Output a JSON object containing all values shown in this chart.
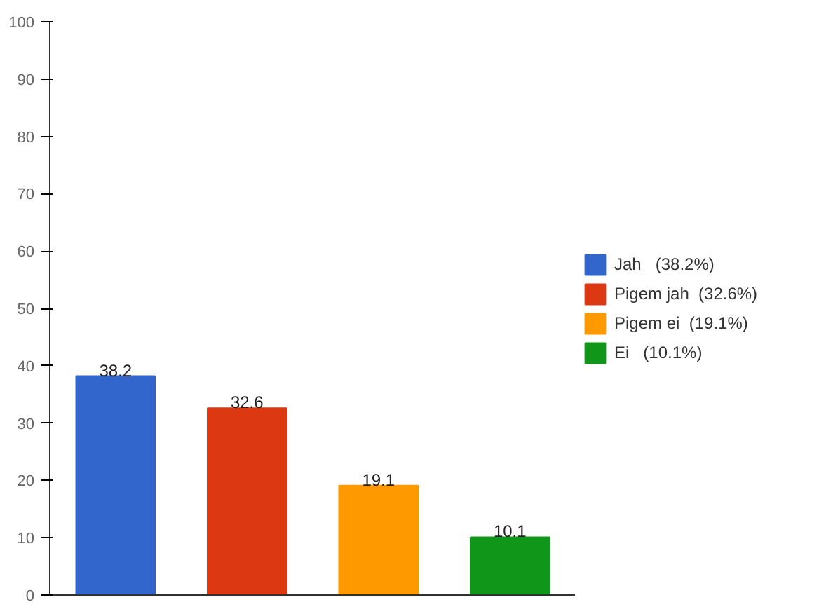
{
  "chart_data": {
    "type": "bar",
    "categories": [
      null,
      null,
      null,
      null
    ],
    "series": [
      {
        "name": "Jah   (38.2%)",
        "color": "#3366cc",
        "values": [
          38.2,
          null,
          null,
          null
        ]
      },
      {
        "name": "Pigem jah  (32.6%)",
        "color": "#dc3912",
        "values": [
          null,
          32.6,
          null,
          null
        ]
      },
      {
        "name": "Pigem ei  (19.1%)",
        "color": "#ff9900",
        "values": [
          null,
          null,
          19.1,
          null
        ]
      },
      {
        "name": "Ei   (10.1%)",
        "color": "#109618",
        "values": [
          null,
          null,
          null,
          10.1
        ]
      }
    ],
    "ylim": [
      0,
      100
    ],
    "yticks": [
      0,
      10,
      20,
      30,
      40,
      50,
      60,
      70,
      80,
      90,
      100
    ],
    "grid": false,
    "legend": "right",
    "data_labels": true
  }
}
